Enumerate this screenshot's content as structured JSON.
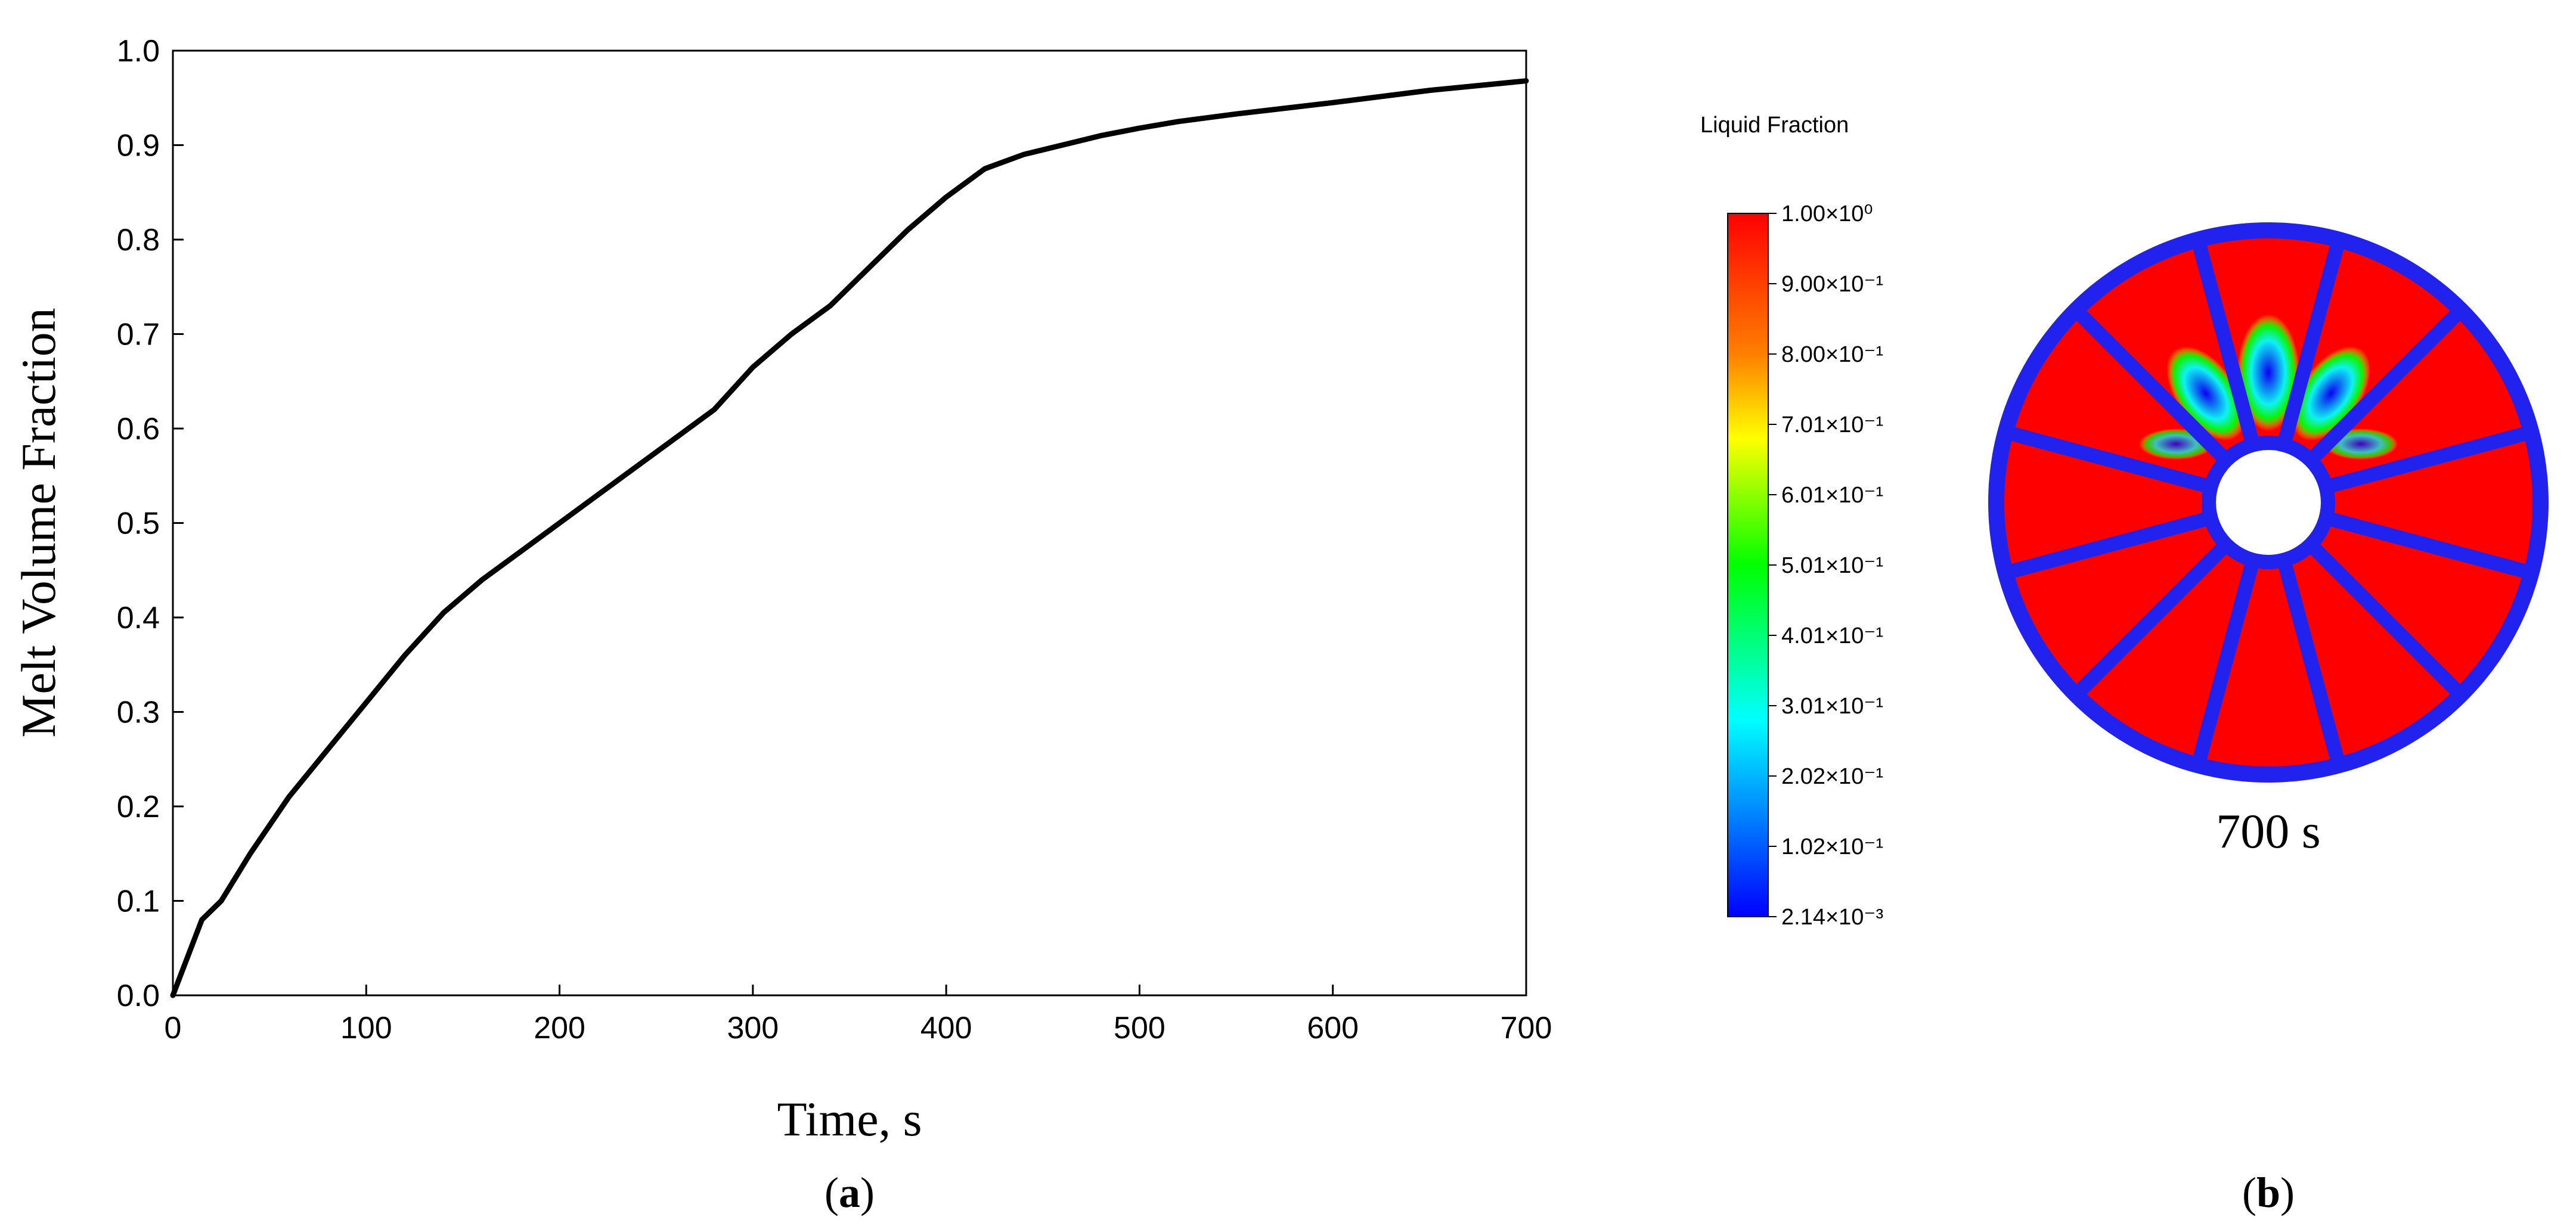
{
  "chart_data": [
    {
      "type": "line",
      "xlabel": "Time, s",
      "ylabel": "Melt Volume Fraction",
      "xlim": [
        0,
        700
      ],
      "ylim": [
        0.0,
        1.0
      ],
      "xticks": [
        "0",
        "100",
        "200",
        "300",
        "400",
        "500",
        "600",
        "700"
      ],
      "yticks": [
        "0.0",
        "0.1",
        "0.2",
        "0.3",
        "0.4",
        "0.5",
        "0.6",
        "0.7",
        "0.8",
        "0.9",
        "1.0"
      ],
      "grid": false,
      "line_color": "#000000",
      "series": [
        {
          "x": [
            0,
            15,
            25,
            40,
            60,
            80,
            100,
            120,
            140,
            160,
            180,
            200,
            220,
            240,
            260,
            280,
            300,
            320,
            340,
            360,
            380,
            400,
            420,
            440,
            460,
            480,
            500,
            520,
            550,
            600,
            650,
            700
          ],
          "y": [
            0.0,
            0.08,
            0.1,
            0.15,
            0.21,
            0.26,
            0.31,
            0.36,
            0.405,
            0.44,
            0.47,
            0.5,
            0.53,
            0.56,
            0.59,
            0.62,
            0.665,
            0.7,
            0.73,
            0.77,
            0.81,
            0.845,
            0.875,
            0.89,
            0.9,
            0.91,
            0.918,
            0.925,
            0.933,
            0.945,
            0.958,
            0.968
          ]
        }
      ],
      "panel_label_text": "(a)",
      "panel_label_bold": "a"
    },
    {
      "type": "heatmap",
      "colorbar_title": "Liquid Fraction",
      "colorbar_ticks": [
        "1.00×10⁰",
        "9.00×10⁻¹",
        "8.00×10⁻¹",
        "7.01×10⁻¹",
        "6.01×10⁻¹",
        "5.01×10⁻¹",
        "4.01×10⁻¹",
        "3.01×10⁻¹",
        "2.02×10⁻¹",
        "1.02×10⁻¹",
        "2.14×10⁻³"
      ],
      "colorbar_colors": [
        "#ff0000",
        "#ff7f00",
        "#ffff00",
        "#00ff00",
        "#00ffff",
        "#0000ff"
      ],
      "time_label": "700 s",
      "fin_count": 12,
      "panel_label_text": "(b)",
      "panel_label_bold": "b"
    }
  ]
}
